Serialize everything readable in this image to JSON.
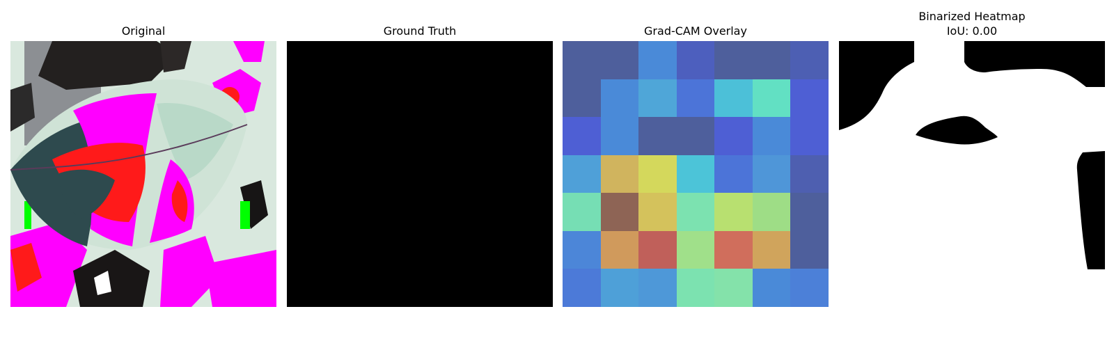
{
  "panels": [
    {
      "title": "Original"
    },
    {
      "title": "Ground Truth"
    },
    {
      "title": "Grad-CAM Overlay"
    },
    {
      "title_line1": "Binarized Heatmap",
      "title_line2": "IoU: 0.00"
    }
  ],
  "colors": {
    "background": "#ffffff",
    "mask_fill": "#000000",
    "mask_empty": "#ffffff",
    "leaf_pale": "#cfe3d6",
    "leaf_dark": "#2e4a4e",
    "magenta": "#ff00ff",
    "red": "#ff1a1a",
    "green": "#00ff00"
  },
  "gradcam_grid": [
    [
      "#4e5f9c",
      "#4e5f9c",
      "#4a8ad8",
      "#4d5fbe",
      "#4e5f9c",
      "#4e5f9c",
      "#4d5fb3"
    ],
    [
      "#4e5f9c",
      "#4a8ad8",
      "#4fa6d8",
      "#4c74d8",
      "#4cc0d8",
      "#62e0c3",
      "#4e5fd4"
    ],
    [
      "#4e5fd4",
      "#4a8ad8",
      "#4e5f9c",
      "#4e5f9c",
      "#4e5fd4",
      "#4a8ad8",
      "#4e5fd4"
    ],
    [
      "#4fa0d8",
      "#d0b45e",
      "#d4d85c",
      "#4cc4d8",
      "#4c74d8",
      "#4f96d8",
      "#4e5fb0"
    ],
    [
      "#76deb4",
      "#8e6455",
      "#d4c25c",
      "#7ce2b0",
      "#b8e070",
      "#9edd86",
      "#4e5f9c"
    ],
    [
      "#4c86d8",
      "#d09a5c",
      "#c0605a",
      "#a0e08a",
      "#d06e5c",
      "#d0a45c",
      "#4e5f9c"
    ],
    [
      "#4c7ad8",
      "#4ea0d8",
      "#4e98d8",
      "#7ce2b0",
      "#84e2aa",
      "#4a8ad8",
      "#4c80d8"
    ]
  ]
}
